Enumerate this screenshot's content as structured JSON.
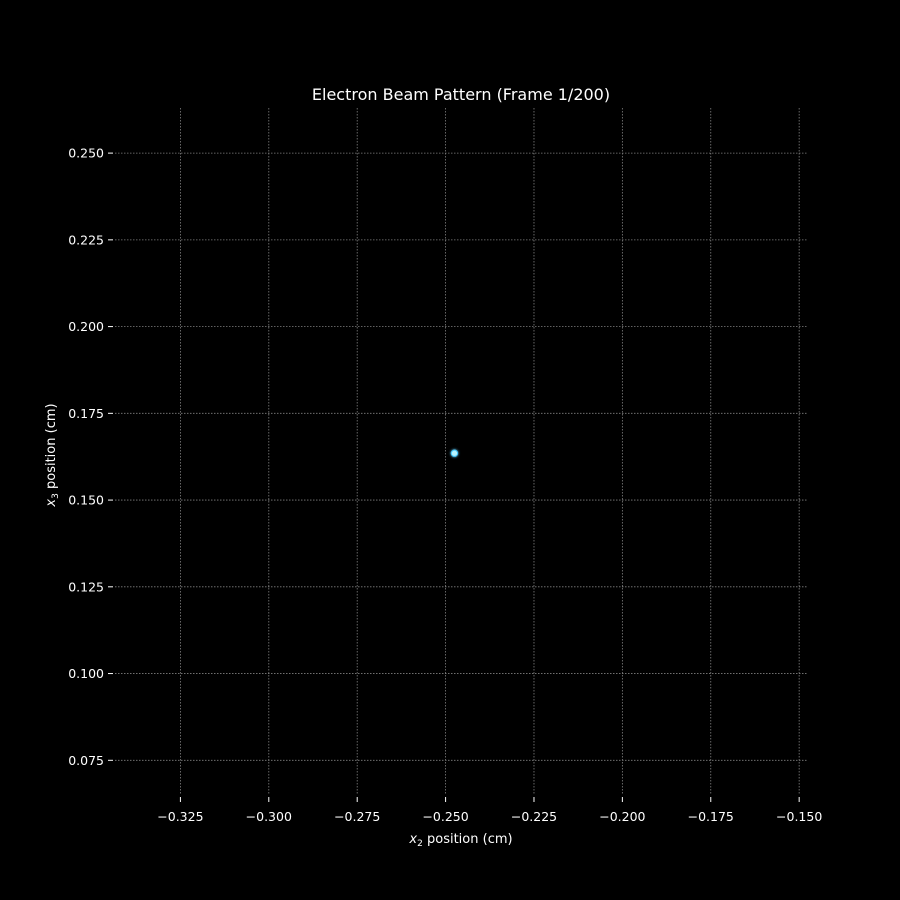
{
  "chart_data": {
    "type": "scatter",
    "title": "Electron Beam Pattern (Frame 1/200)",
    "xlabel": {
      "var": "x",
      "sub": "2",
      "rest": " position (cm)"
    },
    "ylabel": {
      "var": "x",
      "sub": "3",
      "rest": " position (cm)"
    },
    "xlim": [
      -0.3435,
      -0.1475
    ],
    "ylim": [
      0.065,
      0.263
    ],
    "xticks": [
      -0.325,
      -0.3,
      -0.275,
      -0.25,
      -0.225,
      -0.2,
      -0.175,
      -0.15
    ],
    "yticks": [
      0.075,
      0.1,
      0.125,
      0.15,
      0.175,
      0.2,
      0.225,
      0.25
    ],
    "xtick_labels": [
      "−0.325",
      "−0.300",
      "−0.275",
      "−0.250",
      "−0.225",
      "−0.200",
      "−0.175",
      "−0.150"
    ],
    "ytick_labels": [
      "0.075",
      "0.100",
      "0.125",
      "0.150",
      "0.175",
      "0.200",
      "0.225",
      "0.250"
    ],
    "grid": true,
    "background": "#000000",
    "grid_color": "#808080",
    "text_color": "#ffffff",
    "points": [
      {
        "x": -0.2475,
        "y": 0.1635
      }
    ],
    "point_color": "#b8f4ff",
    "point_glow_color": "#40c8ff"
  }
}
